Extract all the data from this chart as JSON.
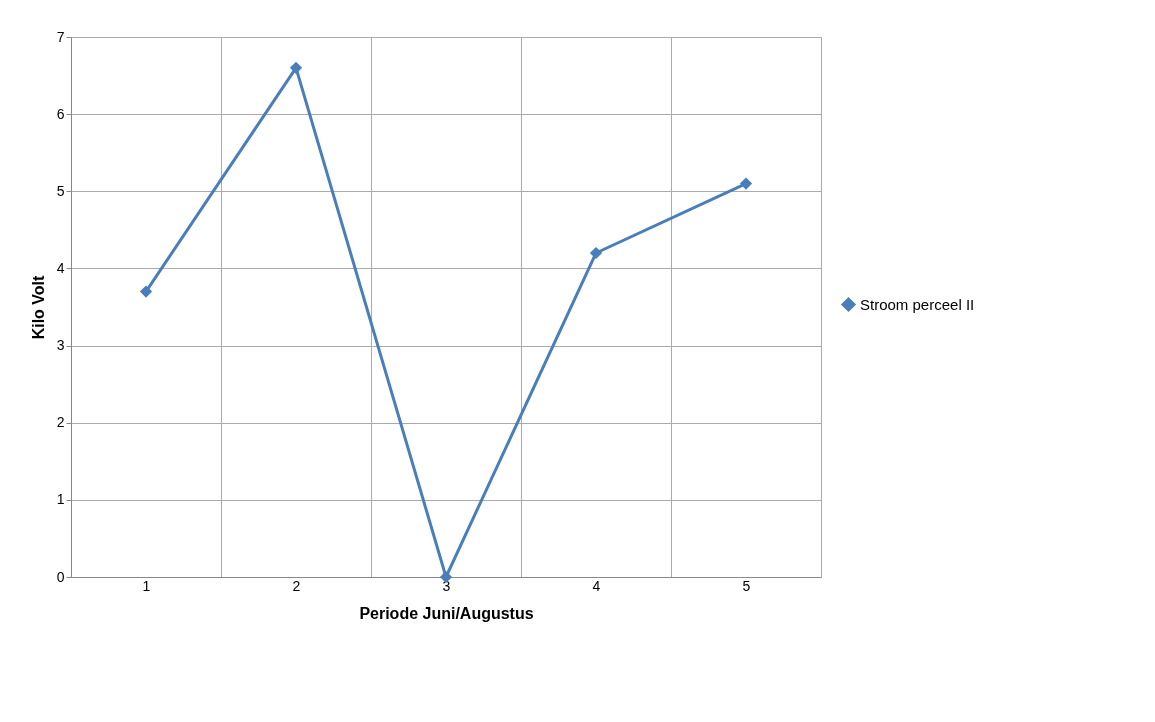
{
  "chart_data": {
    "type": "line",
    "xlabel": "Periode Juni/Augustus",
    "ylabel": "Kilo Volt",
    "categories": [
      "1",
      "2",
      "3",
      "4",
      "5"
    ],
    "series": [
      {
        "name": "Stroom perceel II",
        "color": "#4a7ebb",
        "values": [
          3.7,
          6.6,
          0,
          4.2,
          5.1
        ]
      }
    ],
    "ylim": [
      0,
      7
    ],
    "yticks": [
      0,
      1,
      2,
      3,
      4,
      5,
      6,
      7
    ],
    "grid": true,
    "legend": "right",
    "marker": "diamond",
    "line_style": "solid"
  }
}
